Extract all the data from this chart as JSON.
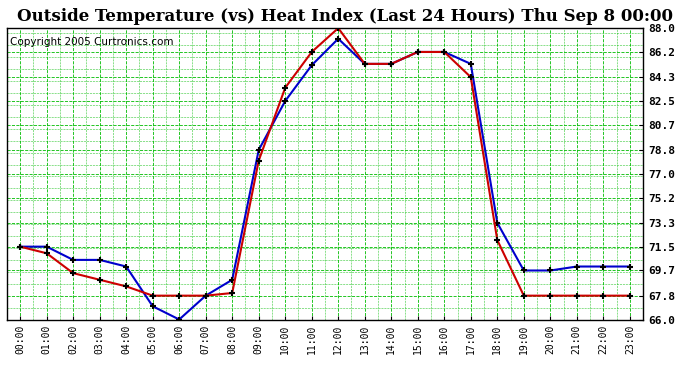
{
  "title": "Outside Temperature (vs) Heat Index (Last 24 Hours) Thu Sep 8 00:00",
  "copyright": "Copyright 2005 Curtronics.com",
  "x_labels": [
    "00:00",
    "01:00",
    "02:00",
    "03:00",
    "04:00",
    "05:00",
    "06:00",
    "07:00",
    "08:00",
    "09:00",
    "10:00",
    "11:00",
    "12:00",
    "13:00",
    "14:00",
    "15:00",
    "16:00",
    "17:00",
    "18:00",
    "19:00",
    "20:00",
    "21:00",
    "22:00",
    "23:00"
  ],
  "blue_data": [
    71.5,
    71.5,
    70.5,
    70.5,
    70.0,
    67.0,
    66.0,
    67.8,
    69.0,
    78.8,
    82.5,
    85.2,
    87.2,
    85.3,
    85.3,
    86.2,
    86.2,
    85.3,
    73.3,
    69.7,
    69.7,
    70.0,
    70.0,
    70.0
  ],
  "red_data": [
    71.5,
    71.0,
    69.5,
    69.0,
    68.5,
    67.8,
    67.8,
    67.8,
    68.0,
    78.0,
    83.5,
    86.2,
    88.0,
    85.3,
    85.3,
    86.2,
    86.2,
    84.3,
    72.0,
    67.8,
    67.8,
    67.8,
    67.8,
    67.8
  ],
  "ylim_min": 66.0,
  "ylim_max": 88.0,
  "yticks": [
    66.0,
    67.8,
    69.7,
    71.5,
    73.3,
    75.2,
    77.0,
    78.8,
    80.7,
    82.5,
    84.3,
    86.2,
    88.0
  ],
  "blue_color": "#0000CC",
  "red_color": "#CC0000",
  "bg_color": "#FFFFFF",
  "grid_color": "#00BB00",
  "title_fontsize": 12,
  "copyright_fontsize": 7.5
}
